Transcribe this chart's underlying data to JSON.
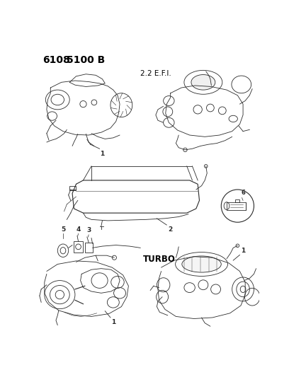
{
  "title_part1": "6108",
  "title_part2": "5100 B",
  "label_efi": "2.2 E.F.I.",
  "label_turbo": "TURBO",
  "bg_color": "#ffffff",
  "line_color": "#2a2a2a",
  "title_color": "#000000",
  "fig_width": 4.08,
  "fig_height": 5.33,
  "dpi": 100,
  "gray_engine": "#888888",
  "mid_gray": "#999999",
  "light_gray": "#bbbbbb"
}
